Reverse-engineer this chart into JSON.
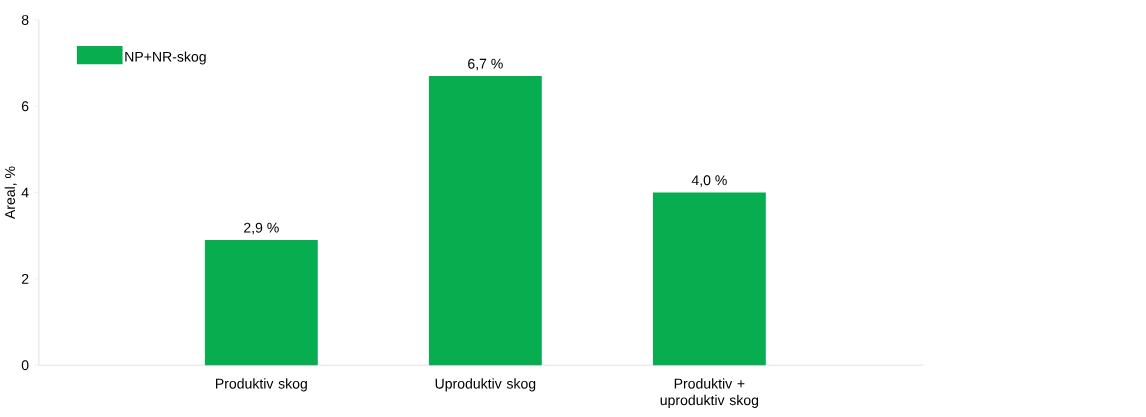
{
  "chart_data": {
    "type": "bar",
    "ylabel": "Areal, %",
    "categories": [
      "Produktiv skog",
      "Uproduktiv skog",
      "Produktiv + uproduktiv skog"
    ],
    "series": [
      {
        "name": "NP+NR-skog",
        "color": "#07ad4f",
        "values": [
          2.9,
          6.7,
          4.0
        ],
        "value_labels": [
          "2,9 %",
          "6,7 %",
          "4,0 %"
        ]
      }
    ],
    "ylim": [
      0,
      8
    ],
    "yticks": [
      0,
      2,
      4,
      6,
      8
    ],
    "grid": false,
    "legend": "top left"
  }
}
